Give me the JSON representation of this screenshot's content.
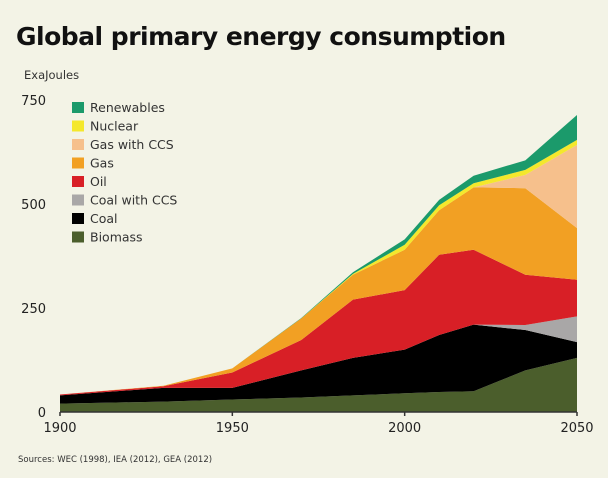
{
  "chart_data": {
    "type": "area",
    "stacked": true,
    "title": "Global primary energy consumption",
    "ylabel": "ExaJoules",
    "xlabel": "",
    "x": [
      1900,
      1930,
      1950,
      1970,
      1985,
      2000,
      2010,
      2020,
      2035,
      2050
    ],
    "xlim": [
      1900,
      2050
    ],
    "ylim": [
      0,
      750
    ],
    "xticks": [
      "1900",
      "1950",
      "2000",
      "2050"
    ],
    "yticks": [
      "0",
      "250",
      "500",
      "750"
    ],
    "grid": false,
    "legend_placement": "top-left",
    "series": [
      {
        "name": "Biomass",
        "color": "#4b5e2c",
        "values": [
          20,
          25,
          30,
          35,
          40,
          45,
          48,
          50,
          100,
          130
        ]
      },
      {
        "name": "Coal",
        "color": "#000000",
        "values": [
          20,
          33,
          28,
          65,
          90,
          105,
          137,
          160,
          97,
          38
        ]
      },
      {
        "name": "Coal with CCS",
        "color": "#a9a7a7",
        "values": [
          0,
          0,
          0,
          0,
          0,
          0,
          0,
          0,
          12,
          62
        ]
      },
      {
        "name": "Oil",
        "color": "#d81f26",
        "values": [
          2,
          4,
          37,
          73,
          140,
          143,
          193,
          180,
          121,
          88
        ]
      },
      {
        "name": "Gas",
        "color": "#f2a023",
        "values": [
          0,
          1,
          10,
          52,
          60,
          97,
          107,
          150,
          208,
          124
        ]
      },
      {
        "name": "Gas with CCS",
        "color": "#f6c08c",
        "values": [
          0,
          0,
          0,
          0,
          0,
          0,
          0,
          0,
          32,
          200
        ]
      },
      {
        "name": "Nuclear",
        "color": "#f4e82c",
        "values": [
          0,
          0,
          0,
          0,
          2,
          12,
          12,
          10,
          12,
          12
        ]
      },
      {
        "name": "Renewables",
        "color": "#1b9a6b",
        "values": [
          0,
          0,
          0,
          1,
          4,
          13,
          13,
          18,
          23,
          60
        ]
      }
    ],
    "legend_order": [
      "Renewables",
      "Nuclear",
      "Gas with CCS",
      "Gas",
      "Oil",
      "Coal with CCS",
      "Coal",
      "Biomass"
    ],
    "source": "Sources: WEC (1998), IEA (2012), GEA (2012)"
  }
}
